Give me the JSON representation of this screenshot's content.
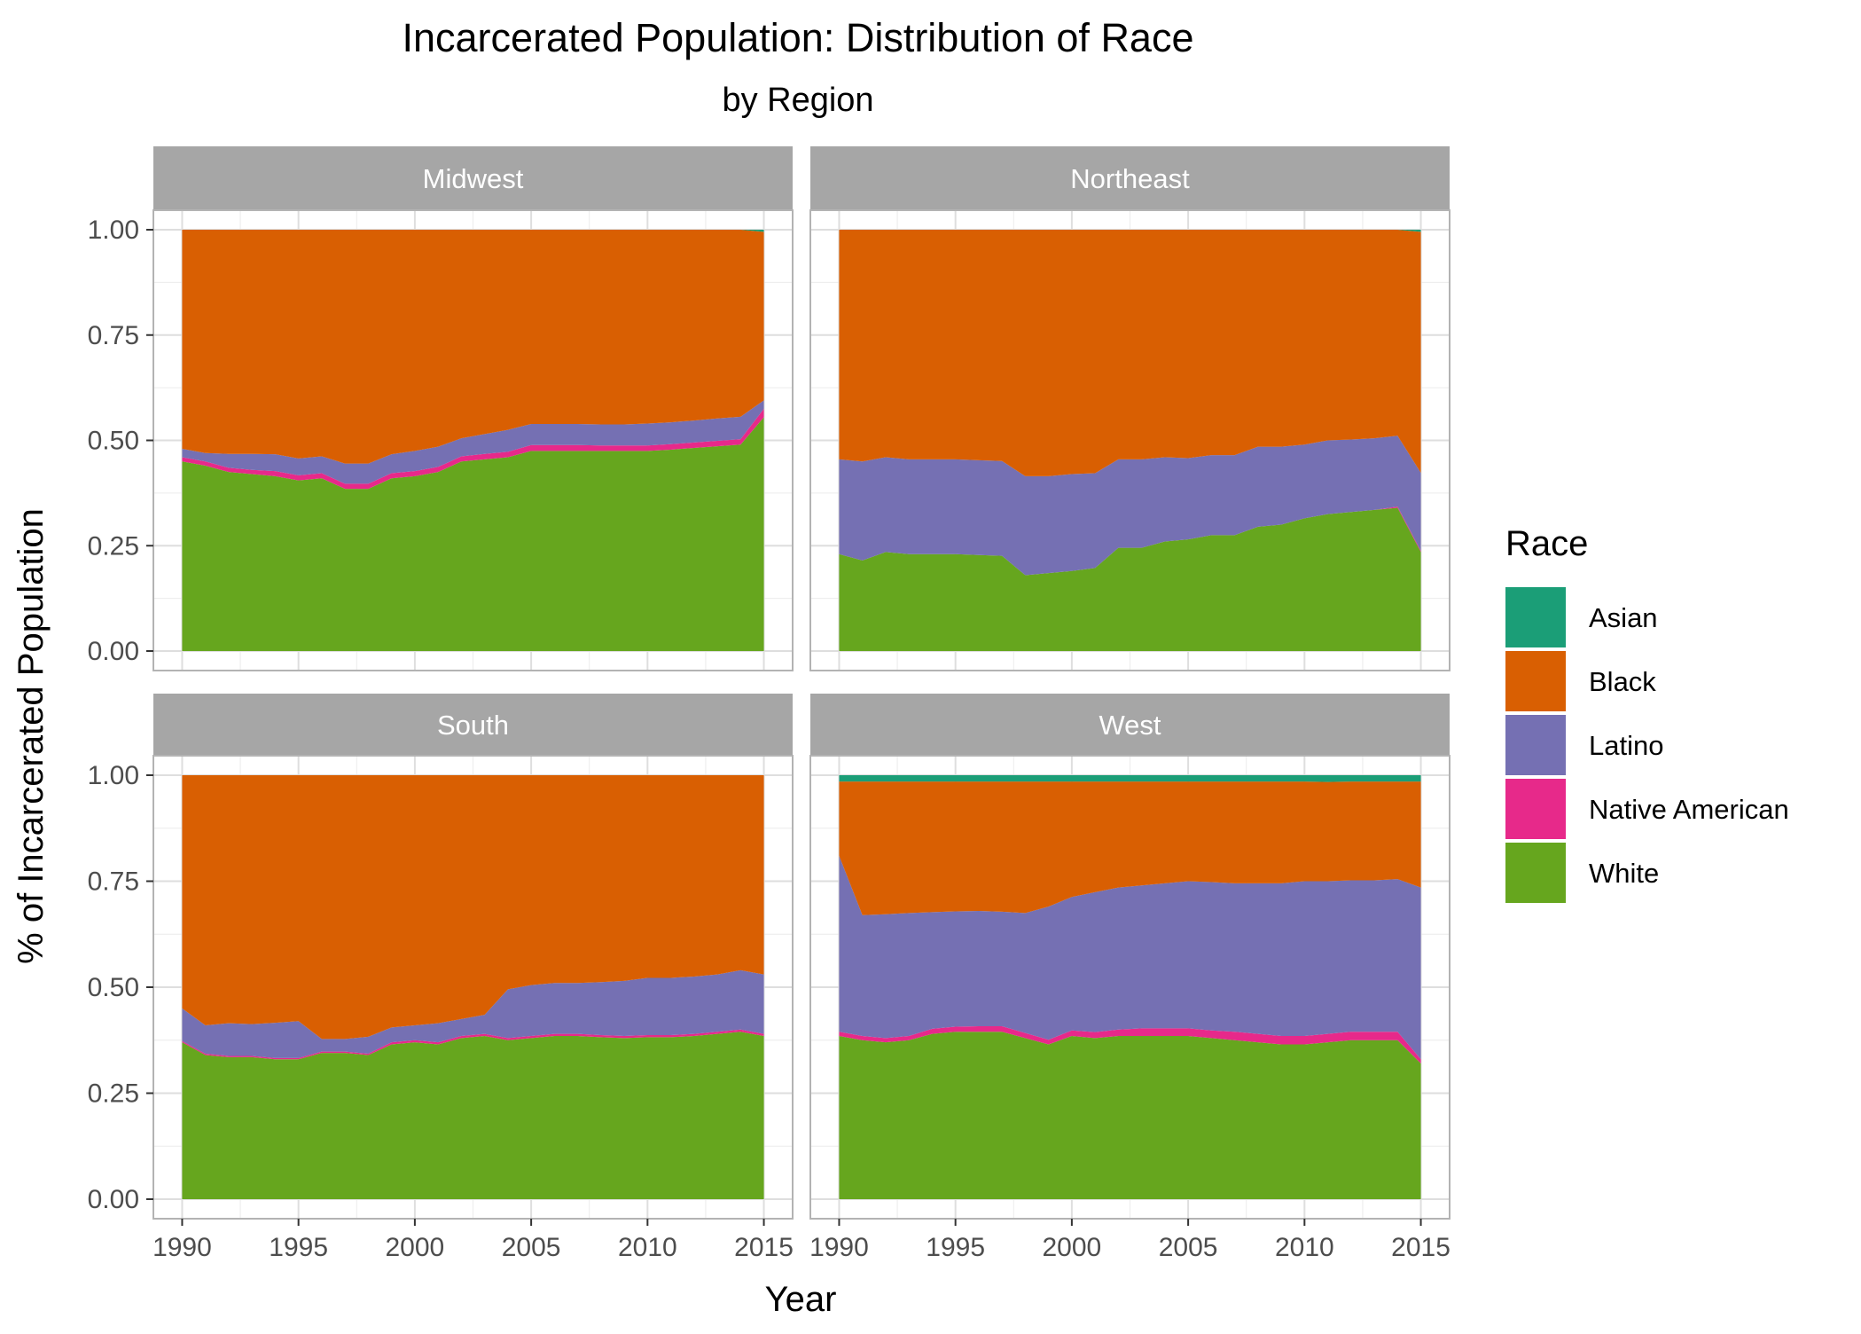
{
  "chart_data": {
    "type": "area",
    "stacked": true,
    "normalized": true,
    "title": "Incarcerated Population: Distribution of Race",
    "subtitle": "by Region",
    "xlabel": "Year",
    "ylabel": "% of Incarcerated Population",
    "xlim": [
      1990,
      2015
    ],
    "ylim": [
      0,
      1
    ],
    "x_ticks": [
      "1990",
      "1995",
      "2000",
      "2005",
      "2010",
      "2015"
    ],
    "y_ticks": [
      "0.00",
      "0.25",
      "0.50",
      "0.75",
      "1.00"
    ],
    "grid": true,
    "legend": {
      "title": "Race",
      "position": "right",
      "entries": [
        "Asian",
        "Black",
        "Latino",
        "Native American",
        "White"
      ]
    },
    "colors": {
      "Asian": "#1b9e77",
      "Black": "#d95f02",
      "Latino": "#7570b3",
      "Native American": "#e7298a",
      "White": "#66a61e"
    },
    "x": [
      1990,
      1991,
      1992,
      1993,
      1994,
      1995,
      1996,
      1997,
      1998,
      1999,
      2000,
      2001,
      2002,
      2003,
      2004,
      2005,
      2006,
      2007,
      2008,
      2009,
      2010,
      2011,
      2012,
      2013,
      2014,
      2015
    ],
    "facets": [
      {
        "name": "Midwest",
        "series": [
          {
            "name": "White",
            "values": [
              0.45,
              0.44,
              0.425,
              0.42,
              0.415,
              0.405,
              0.41,
              0.385,
              0.385,
              0.41,
              0.415,
              0.425,
              0.45,
              0.455,
              0.46,
              0.475,
              0.475,
              0.475,
              0.475,
              0.475,
              0.475,
              0.478,
              0.482,
              0.486,
              0.49,
              0.555
            ]
          },
          {
            "name": "Native American",
            "values": [
              0.01,
              0.01,
              0.01,
              0.01,
              0.012,
              0.012,
              0.012,
              0.012,
              0.012,
              0.012,
              0.012,
              0.012,
              0.012,
              0.013,
              0.013,
              0.014,
              0.014,
              0.014,
              0.013,
              0.013,
              0.013,
              0.013,
              0.013,
              0.013,
              0.013,
              0.02
            ]
          },
          {
            "name": "Latino",
            "values": [
              0.02,
              0.02,
              0.033,
              0.038,
              0.04,
              0.04,
              0.04,
              0.048,
              0.048,
              0.045,
              0.048,
              0.048,
              0.043,
              0.047,
              0.052,
              0.05,
              0.05,
              0.05,
              0.05,
              0.05,
              0.052,
              0.052,
              0.052,
              0.053,
              0.053,
              0.02
            ]
          },
          {
            "name": "Black",
            "values": [
              0.52,
              0.53,
              0.532,
              0.532,
              0.533,
              0.543,
              0.538,
              0.555,
              0.555,
              0.533,
              0.525,
              0.515,
              0.495,
              0.485,
              0.475,
              0.461,
              0.461,
              0.461,
              0.462,
              0.462,
              0.46,
              0.457,
              0.453,
              0.448,
              0.444,
              0.4
            ]
          },
          {
            "name": "Asian",
            "values": [
              0.0,
              0.0,
              0.0,
              0.0,
              0.0,
              0.0,
              0.0,
              0.0,
              0.0,
              0.0,
              0.0,
              0.0,
              0.0,
              0.0,
              0.0,
              0.0,
              0.0,
              0.0,
              0.0,
              0.0,
              0.0,
              0.0,
              0.0,
              0.0,
              0.0,
              0.005
            ]
          }
        ]
      },
      {
        "name": "Northeast",
        "series": [
          {
            "name": "White",
            "values": [
              0.23,
              0.215,
              0.235,
              0.23,
              0.23,
              0.23,
              0.228,
              0.226,
              0.18,
              0.185,
              0.19,
              0.197,
              0.245,
              0.245,
              0.26,
              0.265,
              0.275,
              0.275,
              0.295,
              0.3,
              0.315,
              0.325,
              0.33,
              0.335,
              0.34,
              0.235
            ]
          },
          {
            "name": "Native American",
            "values": [
              0.0,
              0.0,
              0.0,
              0.0,
              0.0,
              0.0,
              0.0,
              0.0,
              0.0,
              0.0,
              0.0,
              0.0,
              0.0,
              0.0,
              0.0,
              0.0,
              0.0,
              0.0,
              0.0,
              0.0,
              0.0,
              0.0,
              0.0,
              0.0,
              0.003,
              0.003
            ]
          },
          {
            "name": "Latino",
            "values": [
              0.225,
              0.235,
              0.225,
              0.225,
              0.225,
              0.225,
              0.225,
              0.225,
              0.235,
              0.23,
              0.23,
              0.225,
              0.21,
              0.21,
              0.2,
              0.193,
              0.19,
              0.19,
              0.19,
              0.185,
              0.175,
              0.175,
              0.172,
              0.17,
              0.168,
              0.185
            ]
          },
          {
            "name": "Black",
            "values": [
              0.545,
              0.55,
              0.54,
              0.545,
              0.545,
              0.545,
              0.547,
              0.549,
              0.585,
              0.585,
              0.58,
              0.578,
              0.545,
              0.545,
              0.54,
              0.542,
              0.535,
              0.535,
              0.515,
              0.515,
              0.51,
              0.5,
              0.498,
              0.495,
              0.489,
              0.572
            ]
          },
          {
            "name": "Asian",
            "values": [
              0.0,
              0.0,
              0.0,
              0.0,
              0.0,
              0.0,
              0.0,
              0.0,
              0.0,
              0.0,
              0.0,
              0.0,
              0.0,
              0.0,
              0.0,
              0.0,
              0.0,
              0.0,
              0.0,
              0.0,
              0.0,
              0.0,
              0.0,
              0.0,
              0.0,
              0.005
            ]
          }
        ]
      },
      {
        "name": "South",
        "series": [
          {
            "name": "White",
            "values": [
              0.37,
              0.34,
              0.335,
              0.335,
              0.33,
              0.33,
              0.345,
              0.345,
              0.34,
              0.365,
              0.37,
              0.365,
              0.38,
              0.385,
              0.375,
              0.38,
              0.385,
              0.385,
              0.382,
              0.38,
              0.382,
              0.382,
              0.385,
              0.39,
              0.395,
              0.385
            ]
          },
          {
            "name": "Native American",
            "values": [
              0.003,
              0.003,
              0.003,
              0.003,
              0.003,
              0.003,
              0.003,
              0.003,
              0.003,
              0.005,
              0.005,
              0.005,
              0.005,
              0.005,
              0.005,
              0.005,
              0.005,
              0.005,
              0.005,
              0.005,
              0.005,
              0.005,
              0.005,
              0.005,
              0.005,
              0.005
            ]
          },
          {
            "name": "Latino",
            "values": [
              0.077,
              0.067,
              0.077,
              0.075,
              0.083,
              0.087,
              0.03,
              0.03,
              0.04,
              0.035,
              0.035,
              0.045,
              0.04,
              0.045,
              0.115,
              0.12,
              0.12,
              0.12,
              0.125,
              0.13,
              0.135,
              0.135,
              0.135,
              0.135,
              0.14,
              0.14
            ]
          },
          {
            "name": "Black",
            "values": [
              0.55,
              0.59,
              0.585,
              0.587,
              0.584,
              0.58,
              0.622,
              0.622,
              0.617,
              0.595,
              0.59,
              0.585,
              0.575,
              0.565,
              0.505,
              0.495,
              0.49,
              0.49,
              0.488,
              0.485,
              0.478,
              0.478,
              0.475,
              0.47,
              0.46,
              0.47
            ]
          },
          {
            "name": "Asian",
            "values": [
              0.0,
              0.0,
              0.0,
              0.0,
              0.0,
              0.0,
              0.0,
              0.0,
              0.0,
              0.0,
              0.0,
              0.0,
              0.0,
              0.0,
              0.0,
              0.0,
              0.0,
              0.0,
              0.0,
              0.0,
              0.0,
              0.0,
              0.0,
              0.0,
              0.0,
              0.0
            ]
          }
        ]
      },
      {
        "name": "West",
        "series": [
          {
            "name": "White",
            "values": [
              0.385,
              0.375,
              0.37,
              0.375,
              0.39,
              0.395,
              0.395,
              0.395,
              0.38,
              0.365,
              0.385,
              0.38,
              0.385,
              0.385,
              0.385,
              0.385,
              0.38,
              0.375,
              0.37,
              0.365,
              0.365,
              0.37,
              0.375,
              0.375,
              0.375,
              0.32
            ]
          },
          {
            "name": "Native American",
            "values": [
              0.01,
              0.01,
              0.01,
              0.01,
              0.012,
              0.012,
              0.013,
              0.013,
              0.012,
              0.011,
              0.013,
              0.014,
              0.015,
              0.018,
              0.018,
              0.018,
              0.018,
              0.02,
              0.02,
              0.02,
              0.02,
              0.02,
              0.02,
              0.02,
              0.02,
              0.01
            ]
          },
          {
            "name": "Latino",
            "values": [
              0.415,
              0.285,
              0.292,
              0.29,
              0.275,
              0.272,
              0.272,
              0.27,
              0.283,
              0.314,
              0.315,
              0.33,
              0.335,
              0.337,
              0.342,
              0.347,
              0.35,
              0.35,
              0.355,
              0.36,
              0.365,
              0.36,
              0.357,
              0.357,
              0.36,
              0.405
            ]
          },
          {
            "name": "Black",
            "values": [
              0.175,
              0.315,
              0.313,
              0.31,
              0.308,
              0.306,
              0.305,
              0.307,
              0.31,
              0.295,
              0.272,
              0.261,
              0.25,
              0.245,
              0.24,
              0.235,
              0.237,
              0.24,
              0.24,
              0.24,
              0.235,
              0.234,
              0.233,
              0.233,
              0.23,
              0.25
            ]
          },
          {
            "name": "Asian",
            "values": [
              0.015,
              0.015,
              0.015,
              0.015,
              0.015,
              0.015,
              0.015,
              0.015,
              0.015,
              0.015,
              0.015,
              0.015,
              0.015,
              0.015,
              0.015,
              0.015,
              0.015,
              0.015,
              0.015,
              0.015,
              0.015,
              0.016,
              0.015,
              0.015,
              0.015,
              0.015
            ]
          }
        ]
      }
    ]
  }
}
